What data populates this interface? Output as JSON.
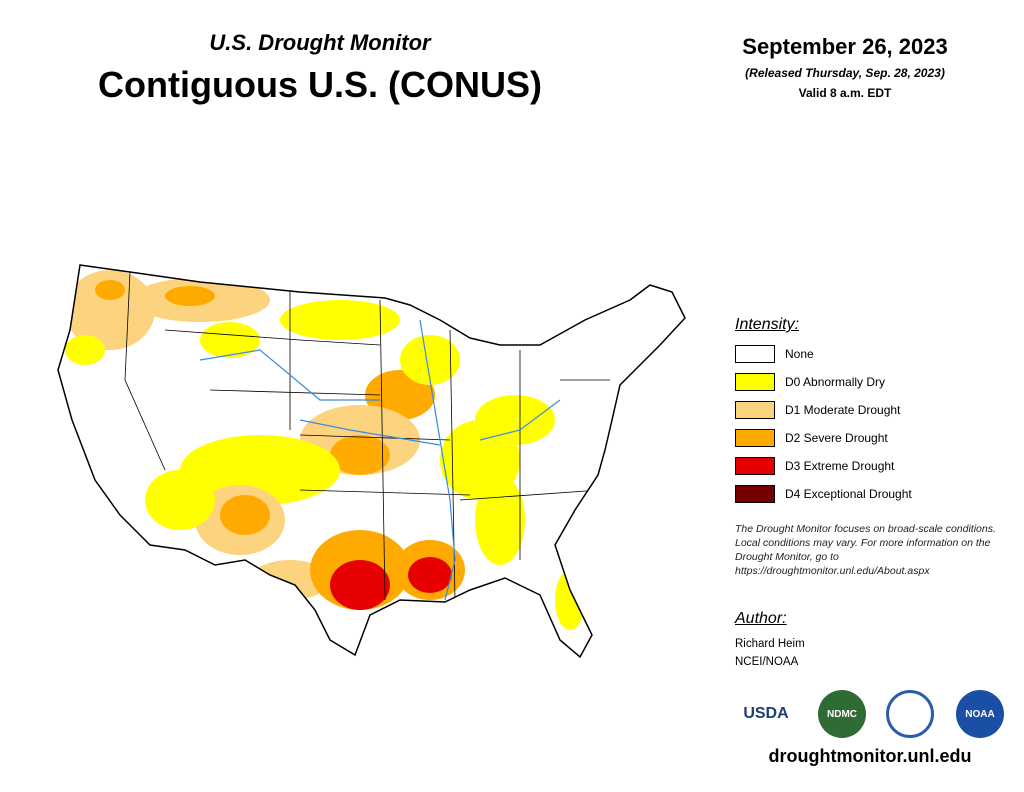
{
  "header": {
    "subtitle": "U.S. Drought Monitor",
    "title": "Contiguous U.S. (CONUS)"
  },
  "date": {
    "date": "September 26, 2023",
    "released": "(Released Thursday, Sep. 28, 2023)",
    "valid": "Valid 8 a.m. EDT"
  },
  "legend": {
    "title": "Intensity:",
    "items": [
      {
        "label": "None",
        "color": "#ffffff"
      },
      {
        "label": "D0 Abnormally Dry",
        "color": "#ffff00"
      },
      {
        "label": "D1 Moderate Drought",
        "color": "#fcd37f"
      },
      {
        "label": "D2 Severe Drought",
        "color": "#ffaa00"
      },
      {
        "label": "D3 Extreme Drought",
        "color": "#e60000"
      },
      {
        "label": "D4 Exceptional Drought",
        "color": "#730000"
      }
    ]
  },
  "note": "The Drought Monitor focuses on broad-scale conditions. Local conditions may vary. For more information on the Drought Monitor, go to https://droughtmonitor.unl.edu/About.aspx",
  "author": {
    "title": "Author:",
    "lines": [
      "Richard Heim",
      "NCEI/NOAA"
    ]
  },
  "logos": [
    "USDA",
    "NDMC",
    "NOAA"
  ],
  "footer": {
    "url": "droughtmonitor.unl.edu"
  }
}
